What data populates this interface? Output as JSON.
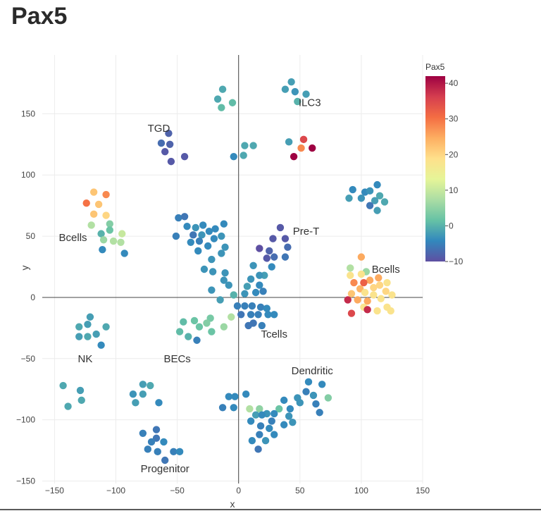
{
  "page": {
    "title": "Pax5"
  },
  "chart_data": {
    "type": "scatter",
    "title": "Pax5",
    "xlabel": "x",
    "ylabel": "y",
    "xlim": [
      -160,
      150
    ],
    "ylim": [
      -152,
      198
    ],
    "xticks": [
      -150,
      -100,
      -50,
      0,
      50,
      100,
      150
    ],
    "yticks": [
      -150,
      -100,
      -50,
      0,
      50,
      100,
      150
    ],
    "tick_labels_x": [
      "−150",
      "−100",
      "−50",
      "0",
      "50",
      "100",
      "150"
    ],
    "tick_labels_y": [
      "−150",
      "−100",
      "−50",
      "0",
      "50",
      "100",
      "150"
    ],
    "colorbar": {
      "title": "Pax5",
      "min": -10,
      "max": 42,
      "ticks": [
        40,
        30,
        20,
        10,
        0,
        -10
      ],
      "tick_labels": [
        "40",
        "30",
        "20",
        "10",
        "0",
        "−10"
      ],
      "colors": [
        "#5e4fa2",
        "#3288bd",
        "#66c2a5",
        "#abdda4",
        "#e6f598",
        "#fee08b",
        "#fdae61",
        "#f46d43",
        "#d53e4f",
        "#9e0142"
      ]
    },
    "annotations": [
      {
        "text": "ILC3",
        "x": 58,
        "y": 159
      },
      {
        "text": "TGD",
        "x": -65,
        "y": 138
      },
      {
        "text": "Bcells",
        "x": -135,
        "y": 49
      },
      {
        "text": "Pre-T",
        "x": 55,
        "y": 54
      },
      {
        "text": "Bcells",
        "x": 120,
        "y": 23
      },
      {
        "text": "Tcells",
        "x": 29,
        "y": -30
      },
      {
        "text": "NK",
        "x": -125,
        "y": -50
      },
      {
        "text": "BECs",
        "x": -50,
        "y": -50
      },
      {
        "text": "Dendritic",
        "x": 60,
        "y": -60
      },
      {
        "text": "Progenitor",
        "x": -60,
        "y": -140
      }
    ],
    "points": [
      [
        -13,
        170,
        -1
      ],
      [
        -17,
        162,
        -1
      ],
      [
        -14,
        155,
        1
      ],
      [
        -5,
        159,
        1
      ],
      [
        43,
        176,
        -2
      ],
      [
        38,
        170,
        -2
      ],
      [
        46,
        168,
        -3
      ],
      [
        55,
        166,
        -2
      ],
      [
        48,
        160,
        0
      ],
      [
        -57,
        134,
        -8
      ],
      [
        -63,
        126,
        -7
      ],
      [
        -56,
        125,
        -8
      ],
      [
        -60,
        119,
        -9
      ],
      [
        -44,
        115,
        -9
      ],
      [
        -55,
        111,
        -9
      ],
      [
        5,
        124,
        -1
      ],
      [
        12,
        124,
        -1
      ],
      [
        4,
        116,
        -1
      ],
      [
        -4,
        115,
        -4
      ],
      [
        53,
        129,
        35
      ],
      [
        41,
        127,
        -2
      ],
      [
        60,
        122,
        42
      ],
      [
        51,
        122,
        28
      ],
      [
        45,
        115,
        42
      ],
      [
        93,
        88,
        -4
      ],
      [
        103,
        86,
        -4
      ],
      [
        113,
        92,
        -4
      ],
      [
        107,
        87,
        -3
      ],
      [
        115,
        83,
        -1
      ],
      [
        90,
        81,
        -2
      ],
      [
        100,
        81,
        -3
      ],
      [
        111,
        79,
        -2
      ],
      [
        119,
        78,
        -1
      ],
      [
        107,
        75,
        -6
      ],
      [
        113,
        71,
        -2
      ],
      [
        -118,
        86,
        22
      ],
      [
        -108,
        84,
        28
      ],
      [
        -124,
        77,
        30
      ],
      [
        -114,
        76,
        22
      ],
      [
        -118,
        68,
        22
      ],
      [
        -108,
        67,
        20
      ],
      [
        -120,
        59,
        8
      ],
      [
        -105,
        60,
        4
      ],
      [
        -105,
        55,
        2
      ],
      [
        -112,
        52,
        0
      ],
      [
        -95,
        52,
        10
      ],
      [
        -110,
        47,
        6
      ],
      [
        -102,
        46,
        8
      ],
      [
        -96,
        45,
        8
      ],
      [
        -111,
        39,
        -4
      ],
      [
        -93,
        36,
        -4
      ],
      [
        -49,
        65,
        -5
      ],
      [
        -44,
        66,
        -6
      ],
      [
        -29,
        59,
        -4
      ],
      [
        -12,
        60,
        -4
      ],
      [
        -42,
        58,
        -4
      ],
      [
        -35,
        57,
        -3
      ],
      [
        -19,
        56,
        -4
      ],
      [
        -24,
        54,
        -4
      ],
      [
        -51,
        50,
        -5
      ],
      [
        -37,
        51,
        -6
      ],
      [
        -30,
        51,
        -3
      ],
      [
        -14,
        50,
        -3
      ],
      [
        -20,
        48,
        -4
      ],
      [
        -39,
        45,
        -4
      ],
      [
        -32,
        46,
        -5
      ],
      [
        -25,
        42,
        -4
      ],
      [
        -11,
        41,
        -3
      ],
      [
        -33,
        38,
        -4
      ],
      [
        -14,
        36,
        -3
      ],
      [
        -22,
        31,
        -3
      ],
      [
        -28,
        23,
        -3
      ],
      [
        -21,
        21,
        -3
      ],
      [
        -11,
        20,
        -3
      ],
      [
        -12,
        14,
        -3
      ],
      [
        -22,
        6,
        -3
      ],
      [
        -15,
        -2,
        -2
      ],
      [
        -8,
        10,
        -3
      ],
      [
        -4,
        2,
        0
      ],
      [
        7,
        9,
        -2
      ],
      [
        5,
        3,
        -3
      ],
      [
        14,
        4,
        -4
      ],
      [
        20,
        5,
        -5
      ],
      [
        34,
        57,
        -9
      ],
      [
        28,
        48,
        -9
      ],
      [
        38,
        48,
        -9
      ],
      [
        40,
        41,
        -7
      ],
      [
        17,
        40,
        -10
      ],
      [
        25,
        38,
        -8
      ],
      [
        29,
        33,
        -7
      ],
      [
        23,
        32,
        -9
      ],
      [
        38,
        33,
        -6
      ],
      [
        12,
        26,
        -3
      ],
      [
        27,
        25,
        -4
      ],
      [
        21,
        18,
        -2
      ],
      [
        17,
        18,
        -3
      ],
      [
        10,
        15,
        -3
      ],
      [
        17,
        10,
        -4
      ],
      [
        -1,
        -7,
        -5
      ],
      [
        5,
        -7,
        -5
      ],
      [
        11,
        -7,
        -5
      ],
      [
        18,
        -8,
        -5
      ],
      [
        23,
        -9,
        -4
      ],
      [
        2,
        -14,
        -6
      ],
      [
        10,
        -14,
        -5
      ],
      [
        16,
        -14,
        -5
      ],
      [
        24,
        -14,
        -4
      ],
      [
        29,
        -14,
        -4
      ],
      [
        12,
        -21,
        -6
      ],
      [
        8,
        -23,
        -6
      ],
      [
        19,
        -23,
        -5
      ],
      [
        -6,
        -16,
        8
      ],
      [
        -23,
        -17,
        3
      ],
      [
        -36,
        -19,
        2
      ],
      [
        -26,
        -21,
        4
      ],
      [
        -45,
        -20,
        1
      ],
      [
        -32,
        -24,
        2
      ],
      [
        -12,
        -24,
        6
      ],
      [
        -48,
        -28,
        1
      ],
      [
        -22,
        -28,
        2
      ],
      [
        -41,
        -32,
        0
      ],
      [
        -34,
        -35,
        -5
      ],
      [
        -121,
        -16,
        -2
      ],
      [
        -123,
        -22,
        -2
      ],
      [
        -130,
        -24,
        -1
      ],
      [
        -108,
        -24,
        -1
      ],
      [
        -116,
        -30,
        -2
      ],
      [
        -123,
        -32,
        -1
      ],
      [
        -130,
        -32,
        -2
      ],
      [
        -112,
        -39,
        -4
      ],
      [
        -143,
        -72,
        -1
      ],
      [
        -129,
        -76,
        -2
      ],
      [
        -128,
        -84,
        -1
      ],
      [
        -139,
        -89,
        -1
      ],
      [
        -78,
        -71,
        -2
      ],
      [
        -72,
        -72,
        -1
      ],
      [
        -86,
        -79,
        -3
      ],
      [
        -78,
        -79,
        -2
      ],
      [
        -84,
        -86,
        -2
      ],
      [
        -65,
        -86,
        -4
      ],
      [
        -8,
        -81,
        -4
      ],
      [
        -3,
        -81,
        -4
      ],
      [
        -13,
        -90,
        -5
      ],
      [
        -4,
        -90,
        -4
      ],
      [
        6,
        -79,
        -4
      ],
      [
        57,
        -69,
        -4
      ],
      [
        68,
        -71,
        -4
      ],
      [
        55,
        -77,
        -5
      ],
      [
        61,
        -80,
        -3
      ],
      [
        48,
        -82,
        -3
      ],
      [
        73,
        -82,
        4
      ],
      [
        37,
        -84,
        -4
      ],
      [
        50,
        -86,
        -3
      ],
      [
        63,
        -87,
        -5
      ],
      [
        42,
        -91,
        -4
      ],
      [
        66,
        -94,
        -5
      ],
      [
        9,
        -91,
        8
      ],
      [
        17,
        -91,
        5
      ],
      [
        33,
        -91,
        2
      ],
      [
        23,
        -95,
        -3
      ],
      [
        29,
        -95,
        -4
      ],
      [
        14,
        -96,
        -2
      ],
      [
        19,
        -96,
        -4
      ],
      [
        41,
        -97,
        -3
      ],
      [
        10,
        -101,
        -4
      ],
      [
        27,
        -101,
        -5
      ],
      [
        44,
        -102,
        -3
      ],
      [
        37,
        -104,
        -4
      ],
      [
        18,
        -105,
        -5
      ],
      [
        25,
        -107,
        -4
      ],
      [
        17,
        -112,
        -5
      ],
      [
        29,
        -112,
        -4
      ],
      [
        11,
        -117,
        -4
      ],
      [
        22,
        -117,
        -3
      ],
      [
        16,
        -124,
        -6
      ],
      [
        -78,
        -111,
        -5
      ],
      [
        -67,
        -108,
        -6
      ],
      [
        -67,
        -115,
        -6
      ],
      [
        -71,
        -118,
        -5
      ],
      [
        -61,
        -118,
        -4
      ],
      [
        -74,
        -124,
        -5
      ],
      [
        -66,
        -126,
        -5
      ],
      [
        -53,
        -126,
        -5
      ],
      [
        -48,
        -126,
        -4
      ],
      [
        -60,
        -133,
        -6
      ],
      [
        100,
        33,
        25
      ],
      [
        91,
        24,
        8
      ],
      [
        104,
        21,
        6
      ],
      [
        91,
        18,
        18
      ],
      [
        100,
        19,
        18
      ],
      [
        114,
        16,
        25
      ],
      [
        107,
        14,
        25
      ],
      [
        102,
        12,
        32
      ],
      [
        94,
        12,
        28
      ],
      [
        121,
        12,
        18
      ],
      [
        115,
        10,
        20
      ],
      [
        110,
        8,
        20
      ],
      [
        99,
        7,
        24
      ],
      [
        120,
        5,
        20
      ],
      [
        103,
        4,
        18
      ],
      [
        125,
        2,
        18
      ],
      [
        92,
        3,
        22
      ],
      [
        110,
        2,
        18
      ],
      [
        116,
        -1,
        18
      ],
      [
        89,
        -2,
        38
      ],
      [
        97,
        -2,
        25
      ],
      [
        105,
        -3,
        25
      ],
      [
        102,
        -8,
        18
      ],
      [
        121,
        -8,
        18
      ],
      [
        113,
        -11,
        18
      ],
      [
        124,
        -11,
        18
      ],
      [
        105,
        -10,
        38
      ],
      [
        92,
        -13,
        35
      ]
    ]
  }
}
